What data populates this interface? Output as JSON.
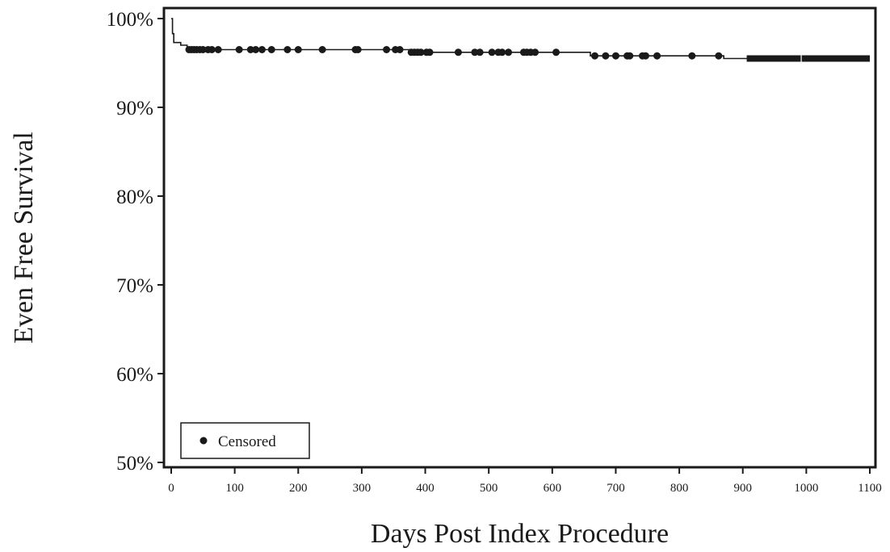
{
  "chart_data": {
    "type": "line",
    "subtype": "kaplan-meier step curve with censor markers",
    "title": "",
    "xlabel": "Days Post Index Procedure",
    "ylabel": "Even Free Survival",
    "xlim": [
      0,
      1100
    ],
    "ylim": [
      50,
      100
    ],
    "x_ticks": [
      0,
      100,
      200,
      300,
      400,
      500,
      600,
      700,
      800,
      900,
      1000,
      1100
    ],
    "x_tick_labels": [
      "0",
      "100",
      "200",
      "300",
      "400",
      "500",
      "600",
      "700",
      "800",
      "900",
      "1000",
      "1100"
    ],
    "y_ticks": [
      50,
      60,
      70,
      80,
      90,
      100
    ],
    "y_tick_labels": [
      "50%",
      "60%",
      "70%",
      "80%",
      "90%",
      "100%"
    ],
    "grid": false,
    "legend": {
      "position": "bottom-left",
      "entries": [
        {
          "label": "Censored",
          "marker": "filled-circle"
        }
      ]
    },
    "series": [
      {
        "steps": [
          {
            "x": 0,
            "y": 100.0
          },
          {
            "x": 2,
            "y": 98.3
          },
          {
            "x": 4,
            "y": 97.3
          },
          {
            "x": 15,
            "y": 97.0
          },
          {
            "x": 25,
            "y": 96.5
          },
          {
            "x": 375,
            "y": 96.2
          },
          {
            "x": 660,
            "y": 95.8
          },
          {
            "x": 870,
            "y": 95.5
          },
          {
            "x": 1100,
            "y": 95.5
          }
        ],
        "censored_x": [
          28,
          32,
          36,
          40,
          45,
          50,
          58,
          64,
          74,
          107,
          125,
          133,
          143,
          158,
          183,
          200,
          238,
          290,
          294,
          339,
          353,
          360,
          378,
          383,
          388,
          393,
          402,
          407,
          452,
          478,
          486,
          505,
          515,
          521,
          531,
          555,
          560,
          566,
          573,
          606,
          667,
          684,
          700,
          718,
          722,
          742,
          747,
          765,
          820,
          862
        ],
        "censored_band": [
          910,
          1100
        ]
      }
    ]
  }
}
